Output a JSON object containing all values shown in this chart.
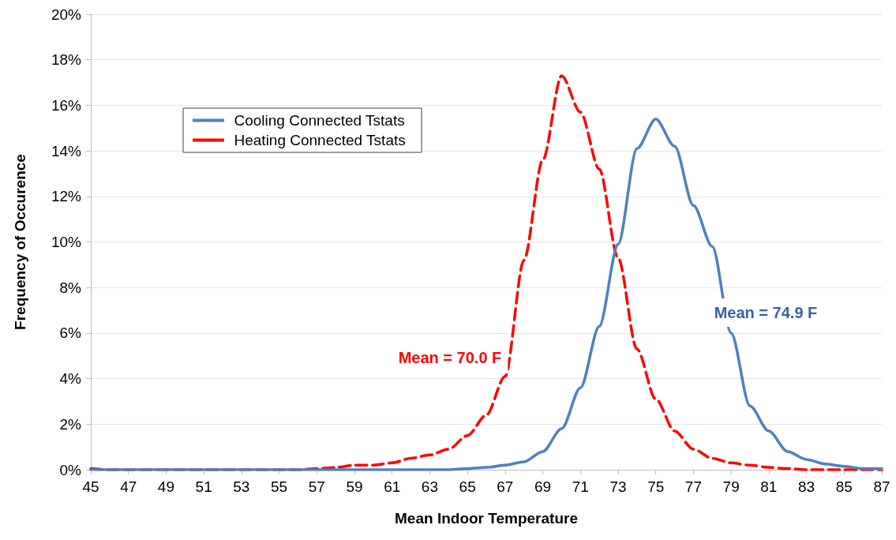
{
  "chart_data": {
    "type": "line",
    "xlabel": "Mean Indoor Temperature",
    "ylabel": "Frequency of Occurence",
    "x": [
      45,
      46,
      47,
      48,
      49,
      50,
      51,
      52,
      53,
      54,
      55,
      56,
      57,
      58,
      59,
      60,
      61,
      62,
      63,
      64,
      65,
      66,
      67,
      68,
      69,
      70,
      71,
      72,
      73,
      74,
      75,
      76,
      77,
      78,
      79,
      80,
      81,
      82,
      83,
      84,
      85,
      86,
      87
    ],
    "series": [
      {
        "name": "Cooling Connected Tstats",
        "color": "#4f81bd",
        "line_style": "solid",
        "values": [
          0,
          0,
          0,
          0,
          0,
          0,
          0,
          0,
          0,
          0,
          0,
          0,
          0,
          0,
          0,
          0,
          0,
          0,
          0,
          0,
          0.05,
          0.1,
          0.2,
          0.35,
          0.8,
          1.8,
          3.6,
          6.3,
          9.9,
          14.1,
          15.4,
          14.2,
          11.6,
          9.8,
          6.0,
          2.8,
          1.7,
          0.8,
          0.45,
          0.25,
          0.15,
          0.05,
          0.05
        ]
      },
      {
        "name": "Heating Connected Tstats",
        "color": "#ff0000",
        "line_style": "dashed",
        "values": [
          0.05,
          0,
          0,
          0,
          0,
          0,
          0,
          0,
          0,
          0,
          0,
          0,
          0.05,
          0.1,
          0.2,
          0.2,
          0.3,
          0.5,
          0.65,
          0.9,
          1.5,
          2.4,
          4.1,
          9.2,
          13.6,
          17.3,
          15.7,
          13.2,
          9.3,
          5.3,
          3.1,
          1.7,
          0.9,
          0.5,
          0.3,
          0.2,
          0.1,
          0.05,
          0,
          0,
          0,
          0,
          0
        ]
      }
    ],
    "xlim": [
      45,
      87
    ],
    "xticks": [
      45,
      47,
      49,
      51,
      53,
      55,
      57,
      59,
      61,
      63,
      65,
      67,
      69,
      71,
      73,
      75,
      77,
      79,
      81,
      83,
      85,
      87
    ],
    "ylim": [
      0,
      20
    ],
    "yticks": [
      {
        "value": 0,
        "label": "0%"
      },
      {
        "value": 2,
        "label": "2%"
      },
      {
        "value": 4,
        "label": "4%"
      },
      {
        "value": 6,
        "label": "6%"
      },
      {
        "value": 8,
        "label": "8%"
      },
      {
        "value": 10,
        "label": "10%"
      },
      {
        "value": 12,
        "label": "12%"
      },
      {
        "value": 14,
        "label": "14%"
      },
      {
        "value": 16,
        "label": "16%"
      },
      {
        "value": 18,
        "label": "18%"
      },
      {
        "value": 20,
        "label": "20%"
      }
    ],
    "annotations": [
      "Mean = 70.0 F",
      "Mean = 74.9 F"
    ],
    "grid": "y",
    "legend": "top left",
    "marker": "none"
  }
}
